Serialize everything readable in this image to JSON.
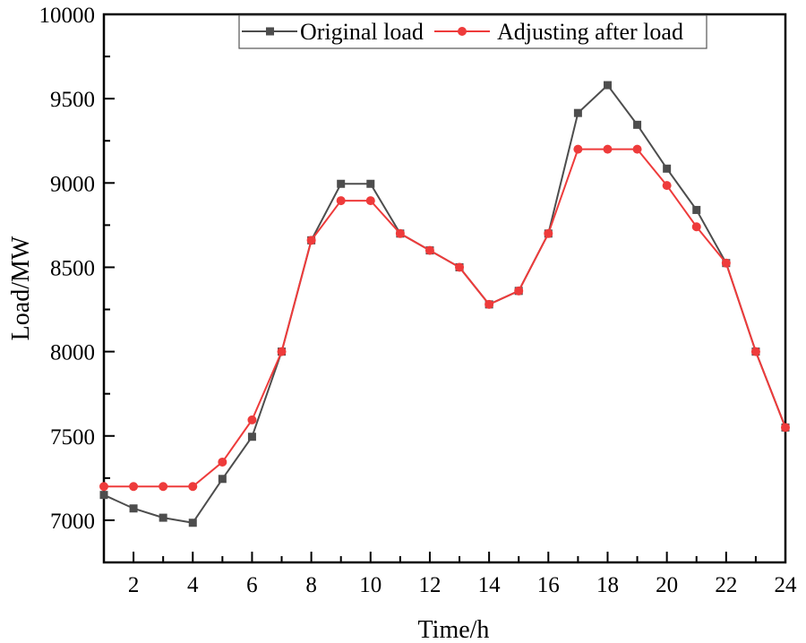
{
  "chart_data": {
    "type": "line",
    "title": "",
    "xlabel": "Time/h",
    "ylabel": "Load/MW",
    "xlim": [
      1,
      24
    ],
    "ylim": [
      6750,
      10000
    ],
    "x_ticks": [
      2,
      4,
      6,
      8,
      10,
      12,
      14,
      16,
      18,
      20,
      22,
      24
    ],
    "y_ticks": [
      7000,
      7500,
      8000,
      8500,
      9000,
      9500,
      10000
    ],
    "grid": false,
    "legend_position": "top-center",
    "x": [
      1,
      2,
      3,
      4,
      5,
      6,
      7,
      8,
      9,
      10,
      11,
      12,
      13,
      14,
      15,
      16,
      17,
      18,
      19,
      20,
      21,
      22,
      23,
      24
    ],
    "series": [
      {
        "name": "Original load",
        "color": "#4d4d4d",
        "marker": "square",
        "values": [
          7150,
          7070,
          7015,
          6985,
          7245,
          7495,
          8000,
          8660,
          8995,
          8995,
          8700,
          8600,
          8500,
          8280,
          8360,
          8700,
          9415,
          9580,
          9345,
          9085,
          8840,
          8525,
          8000,
          7550
        ]
      },
      {
        "name": "Adjusting after load",
        "color": "#ee3b3b",
        "marker": "circle",
        "values": [
          7200,
          7200,
          7200,
          7200,
          7345,
          7595,
          8000,
          8660,
          8895,
          8895,
          8700,
          8600,
          8500,
          8280,
          8360,
          8700,
          9200,
          9200,
          9200,
          8985,
          8740,
          8525,
          8000,
          7550
        ]
      }
    ]
  }
}
